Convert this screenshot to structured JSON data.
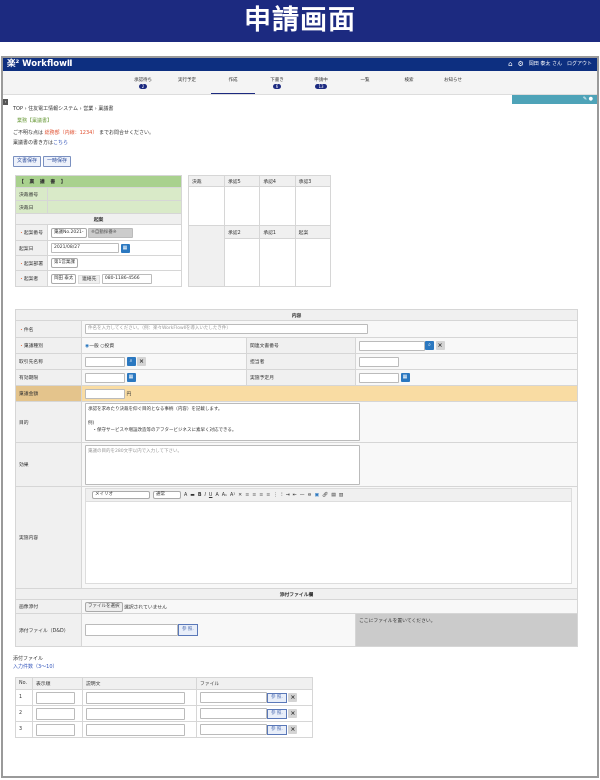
{
  "banner_title": "申請画面",
  "header": {
    "logo": "楽² WorkflowⅡ",
    "user": "岡田 泰太 さん",
    "logout": "ログアウト"
  },
  "nav": {
    "tabs": [
      {
        "label": "承認待ち",
        "badge": "2"
      },
      {
        "label": "実行予定"
      },
      {
        "label": "作成",
        "active": true
      },
      {
        "label": "下書き",
        "badge": "6"
      },
      {
        "label": "申請中",
        "badge": "13"
      },
      {
        "label": "一覧"
      },
      {
        "label": "検索"
      },
      {
        "label": "お知らせ"
      }
    ]
  },
  "breadcrumb": "TOP › 住友電工情報システム › 営業 › 稟議書",
  "category": "業務【稟議書】",
  "notice": {
    "prefix": "ご不明な点は",
    "contact": "総務部（内線：1234）",
    "suffix": "までお問合せください。"
  },
  "howto": {
    "prefix": "稟議書の書き方は",
    "link": "こちら"
  },
  "buttons": {
    "save_doc": "文書保存",
    "temp_save": "一時保存"
  },
  "header_form": {
    "title": "【 稟 議 書 】",
    "decision_no": "決裁番号",
    "decision_date": "決裁日",
    "kian": "起案",
    "kian_no_label": "起案番号",
    "kian_no_select": "稟議No.2021-",
    "auto_no": "※自動採番※",
    "kian_date_label": "起案日",
    "kian_date": "2021/08/27",
    "dept_label": "起案部署",
    "dept": "第1営業課",
    "author_label": "起案者",
    "author": "岡田 泰太",
    "contact_label": "連絡先",
    "contact": "080-1186-4566",
    "approvals_top": [
      "決裁",
      "承認5",
      "承認4",
      "承認3"
    ],
    "approvals_bottom": [
      "承認2",
      "承認1",
      "起案"
    ]
  },
  "content": {
    "section": "内容",
    "subject_label": "件名",
    "subject_placeholder": "件名を入力してください。（例：楽々WorkFlowⅡを導入いたしたき件）",
    "type_label": "稟議種別",
    "type_options": [
      "一般",
      "投資"
    ],
    "type_selected": "一般",
    "related_label": "関連文書番号",
    "client_label": "取引先名称",
    "person_label": "担当者",
    "valid_label": "有効期限",
    "impl_label": "実施予定月",
    "amount_label": "稟議金額",
    "amount_unit": "円",
    "purpose_label": "目的",
    "purpose_text": [
      "承認を求めたり決裁を仰ぐ目的となる事柄（内容）を記載します。",
      "",
      "例)",
      "　・保守サービスや増設改造等のアフタービジネスに素早く対応できる。"
    ],
    "effect_label": "効果",
    "effect_placeholder": "稟議の目的を280文字以内で入力して下さい。",
    "detail_label": "実施内容",
    "font_select": "メイリオ",
    "size_select": "通常"
  },
  "attach": {
    "section": "添付ファイル欄",
    "image_label": "画像添付",
    "choose_file": "ファイルを選択",
    "no_file": "選択されていません",
    "dd_label": "添付ファイル（D&D）",
    "browse": "参 照.",
    "drop_hint": "ここにファイルを置いてください。"
  },
  "files": {
    "title": "添付ファイル",
    "count_link": "入力件数（3～10）",
    "columns": [
      "No.",
      "表示順",
      "説明文",
      "ファイル"
    ],
    "rows": [
      "1",
      "2",
      "3"
    ],
    "browse": "参 照."
  },
  "colors": {
    "navy": "#1c2a80",
    "header": "#0d2f80",
    "teal": "#4ea3b8",
    "green": "#a9d18e",
    "amount": "#f9dca3"
  }
}
